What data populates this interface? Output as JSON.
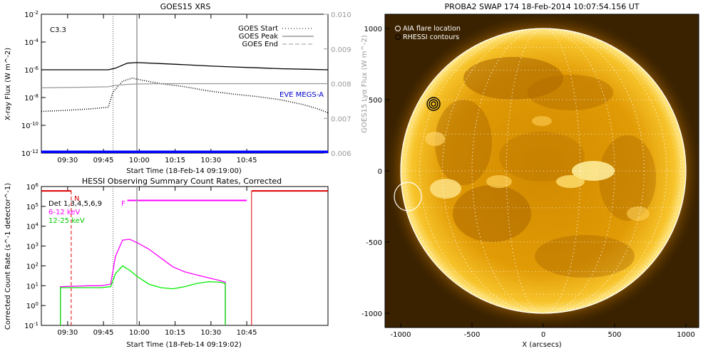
{
  "chart_data": [
    {
      "type": "line",
      "title": "GOES15 XRS",
      "xlabel": "Start Time (18-Feb-14 09:19:00)",
      "ylabel": "X-ray Flux (W m^-2)",
      "y2label": "GOES15 Lyα Flux (W m^-2)",
      "flare_class": "C3.3",
      "x_ticks": [
        "09:30",
        "09:45",
        "10:00",
        "10:15",
        "10:30",
        "10:45"
      ],
      "y_ticks": [
        "10^-2",
        "10^-4",
        "10^-6",
        "10^-8",
        "10^-10",
        "10^-12"
      ],
      "y2_ticks": [
        "0.010",
        "0.009",
        "0.008",
        "0.007",
        "0.006"
      ],
      "ylim": [
        1e-12,
        0.01
      ],
      "y2lim": [
        0.006,
        0.01
      ],
      "log_y": true,
      "legend": {
        "position": "top-right",
        "entries": [
          "GOES Start",
          "GOES Peak",
          "GOES End"
        ]
      },
      "annotation": "EVE MEGS-A",
      "series": [
        {
          "color": "#000000",
          "x_min": [
            0,
            10,
            20,
            28,
            31,
            36,
            40,
            50,
            60,
            70,
            80,
            90,
            100,
            110,
            120
          ],
          "y": [
            1e-06,
            1e-06,
            1e-06,
            1e-06,
            1.3e-06,
            3e-06,
            3.3e-06,
            2.8e-06,
            2.3e-06,
            1.9e-06,
            1.6e-06,
            1.4e-06,
            1.2e-06,
            1.1e-06,
            1e-06
          ]
        },
        {
          "color": "#000000",
          "style": "dotted",
          "x_min": [
            0,
            10,
            20,
            28,
            30,
            34,
            38,
            42,
            50,
            60,
            70,
            80,
            90,
            100,
            110,
            116,
            120
          ],
          "y": [
            1e-09,
            1.2e-09,
            1.5e-09,
            2e-09,
            2.5e-08,
            1.5e-07,
            2.5e-07,
            1.8e-07,
            1e-07,
            6e-08,
            3e-08,
            1.8e-08,
            1.2e-08,
            7e-09,
            3e-09,
            1.5e-09,
            8e-10
          ]
        },
        {
          "color": "#999999",
          "axis": "right",
          "x_min": [
            0,
            10,
            20,
            28,
            31,
            36,
            40,
            50,
            60,
            70,
            80,
            90,
            100,
            110,
            120
          ],
          "y": [
            0.00788,
            0.00789,
            0.0079,
            0.00791,
            0.00795,
            0.00798,
            0.00799,
            0.008,
            0.008,
            0.008,
            0.008,
            0.008,
            0.008,
            0.008,
            0.008
          ]
        },
        {
          "color": "#0000ff",
          "x_min": [
            0,
            120
          ],
          "y": [
            1.2e-12,
            1.2e-12
          ]
        }
      ]
    },
    {
      "type": "line",
      "title": "HESSI Observing Summary Count Rates, Corrected",
      "xlabel": "Start Time (18-Feb-14 09:19:02)",
      "ylabel": "Corrected Count Rate (s^-1 detector^-1)",
      "x_ticks": [
        "09:30",
        "09:45",
        "10:00",
        "10:15",
        "10:30",
        "10:45"
      ],
      "y_ticks": [
        "10^6",
        "10^5",
        "10^4",
        "10^3",
        "10^2",
        "10^1",
        "10^0",
        "10^-1"
      ],
      "ylim": [
        0.1,
        1000000
      ],
      "log_y": true,
      "legend": {
        "position": "top-left",
        "entries": [
          "Det 1,3,4,5,6,9",
          "6-12 keV",
          "12-25 keV"
        ],
        "colors": [
          "#000000",
          "#ff00ff",
          "#00ee00"
        ]
      },
      "markers": {
        "night": "N",
        "flare": "F"
      },
      "series": [
        {
          "name": "6-12 keV",
          "color": "#ff00ff",
          "x_min": [
            8,
            15,
            20,
            25,
            29,
            31,
            34,
            37,
            40,
            45,
            50,
            55,
            60,
            65,
            70,
            75,
            77
          ],
          "y": [
            9,
            9.5,
            10,
            10,
            12,
            300,
            2000,
            2200,
            1500,
            700,
            250,
            90,
            50,
            35,
            25,
            18,
            15
          ]
        },
        {
          "name": "12-25 keV",
          "color": "#00ee00",
          "x_min": [
            8,
            15,
            20,
            25,
            29,
            31,
            34,
            37,
            40,
            45,
            50,
            55,
            60,
            65,
            70,
            75,
            77
          ],
          "y": [
            8,
            8,
            8,
            8,
            9,
            40,
            100,
            60,
            30,
            12,
            8,
            7,
            9,
            13,
            16,
            15,
            13
          ]
        }
      ]
    },
    {
      "type": "image",
      "title": "PROBA2 SWAP 174 18-Feb-2014 10:07:54.156 UT",
      "xlabel": "X (arcsecs)",
      "x_ticks": [
        "-1000",
        "-500",
        "0",
        "500",
        "1000"
      ],
      "y_ticks": [
        "1000",
        "500",
        "0",
        "-500",
        "-1000"
      ],
      "xlim": [
        -1100,
        1100
      ],
      "ylim": [
        -1100,
        1100
      ],
      "legend": {
        "position": "top-left",
        "entries": [
          "AIA flare location",
          "RHESSI contours"
        ]
      },
      "aia_flare": {
        "x": -950,
        "y": -180
      },
      "rhessi": {
        "x": -770,
        "y": 470
      }
    }
  ]
}
